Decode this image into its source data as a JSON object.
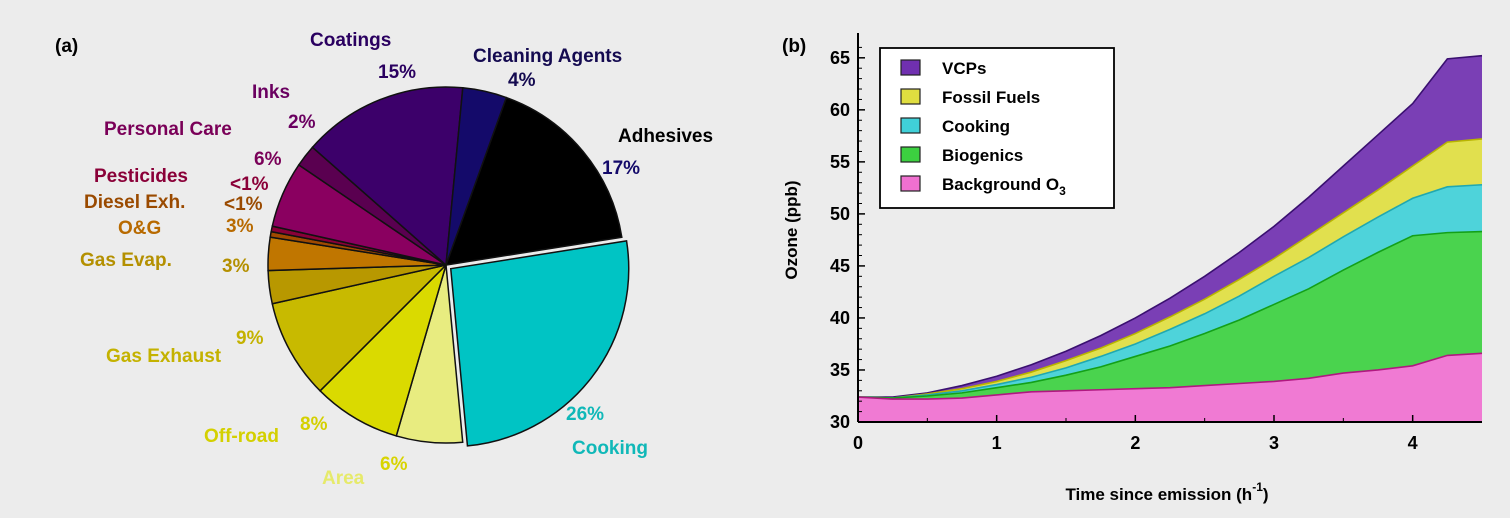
{
  "chart_data": [
    {
      "type": "pie",
      "panel": "(a)",
      "slices": [
        {
          "label": "Adhesives",
          "pct_label": "17%",
          "value": 17,
          "color": "#000000"
        },
        {
          "label": "Cooking",
          "pct_label": "26%",
          "value": 26,
          "color": "#00c4c4"
        },
        {
          "label": "Area",
          "pct_label": "6%",
          "value": 6,
          "color": "#e8ec80"
        },
        {
          "label": "Off-road",
          "pct_label": "8%",
          "value": 8,
          "color": "#dada00"
        },
        {
          "label": "Gas Exhaust",
          "pct_label": "9%",
          "value": 9,
          "color": "#c8ba00"
        },
        {
          "label": "Gas Evap.",
          "pct_label": "3%",
          "value": 3,
          "color": "#b89800"
        },
        {
          "label": "O&G",
          "pct_label": "3%",
          "value": 3,
          "color": "#c07600"
        },
        {
          "label": "Diesel Exh.",
          "pct_label": "<1%",
          "value": 0.5,
          "color": "#a04a00"
        },
        {
          "label": "Pesticides",
          "pct_label": "<1%",
          "value": 0.5,
          "color": "#8a0038"
        },
        {
          "label": "Personal Care",
          "pct_label": "6%",
          "value": 6,
          "color": "#8a0060"
        },
        {
          "label": "Inks",
          "pct_label": "2%",
          "value": 2,
          "color": "#5a0050"
        },
        {
          "label": "Coatings",
          "pct_label": "15%",
          "value": 15,
          "color": "#3c006a"
        },
        {
          "label": "Cleaning Agents",
          "pct_label": "4%",
          "value": 4,
          "color": "#140a6a"
        }
      ]
    },
    {
      "type": "area",
      "panel": "(b)",
      "xlabel": "Time since emission (h",
      "xlabel_sup": "-1",
      "xlabel_end": ")",
      "ylabel": "Ozone (ppb)",
      "xlim": [
        0,
        4.5
      ],
      "ylim": [
        30,
        67
      ],
      "xticks": [
        "0",
        "1",
        "2",
        "3",
        "4"
      ],
      "yticks": [
        "30",
        "35",
        "40",
        "45",
        "50",
        "55",
        "60",
        "65"
      ],
      "x": [
        0,
        0.25,
        0.5,
        0.75,
        1,
        1.25,
        1.5,
        1.75,
        2,
        2.25,
        2.5,
        2.75,
        3,
        3.25,
        3.5,
        3.75,
        4,
        4.25,
        4.5
      ],
      "series": [
        {
          "name": "Background O",
          "sub": "3",
          "color": "#f070d0",
          "cumulative": [
            32.4,
            32.2,
            32.2,
            32.3,
            32.6,
            32.9,
            33.0,
            33.1,
            33.2,
            33.3,
            33.5,
            33.7,
            33.9,
            34.2,
            34.7,
            35.0,
            35.4,
            36.4,
            36.6
          ]
        },
        {
          "name": "Biogenics",
          "color": "#3cd040",
          "cumulative": [
            32.4,
            32.3,
            32.5,
            32.8,
            33.3,
            33.8,
            34.5,
            35.3,
            36.3,
            37.3,
            38.5,
            39.8,
            41.3,
            42.8,
            44.6,
            46.3,
            47.9,
            48.2,
            48.3
          ]
        },
        {
          "name": "Cooking",
          "color": "#40d0d8",
          "cumulative": [
            32.4,
            32.3,
            32.6,
            33.0,
            33.6,
            34.3,
            35.2,
            36.3,
            37.5,
            38.9,
            40.4,
            42.1,
            44.0,
            45.8,
            47.8,
            49.7,
            51.5,
            52.6,
            52.8
          ]
        },
        {
          "name": "Fossil Fuels",
          "color": "#e0de40",
          "cumulative": [
            32.4,
            32.3,
            32.7,
            33.2,
            33.9,
            34.8,
            35.9,
            37.1,
            38.5,
            40.1,
            41.8,
            43.7,
            45.7,
            47.9,
            50.1,
            52.3,
            54.6,
            56.9,
            57.2
          ]
        },
        {
          "name": "VCPs",
          "color": "#7030b0",
          "cumulative": [
            32.4,
            32.4,
            32.8,
            33.5,
            34.4,
            35.5,
            36.8,
            38.3,
            40.0,
            41.9,
            44.0,
            46.3,
            48.8,
            51.6,
            54.6,
            57.6,
            60.6,
            64.9,
            65.2
          ]
        }
      ],
      "legend": [
        {
          "label": "VCPs",
          "sub": "",
          "color": "#7030b0"
        },
        {
          "label": "Fossil Fuels",
          "sub": "",
          "color": "#e0de40"
        },
        {
          "label": "Cooking",
          "sub": "",
          "color": "#40d0d8"
        },
        {
          "label": "Biogenics",
          "sub": "",
          "color": "#3cd040"
        },
        {
          "label": "Background O",
          "sub": "3",
          "color": "#f070d0"
        }
      ]
    }
  ]
}
